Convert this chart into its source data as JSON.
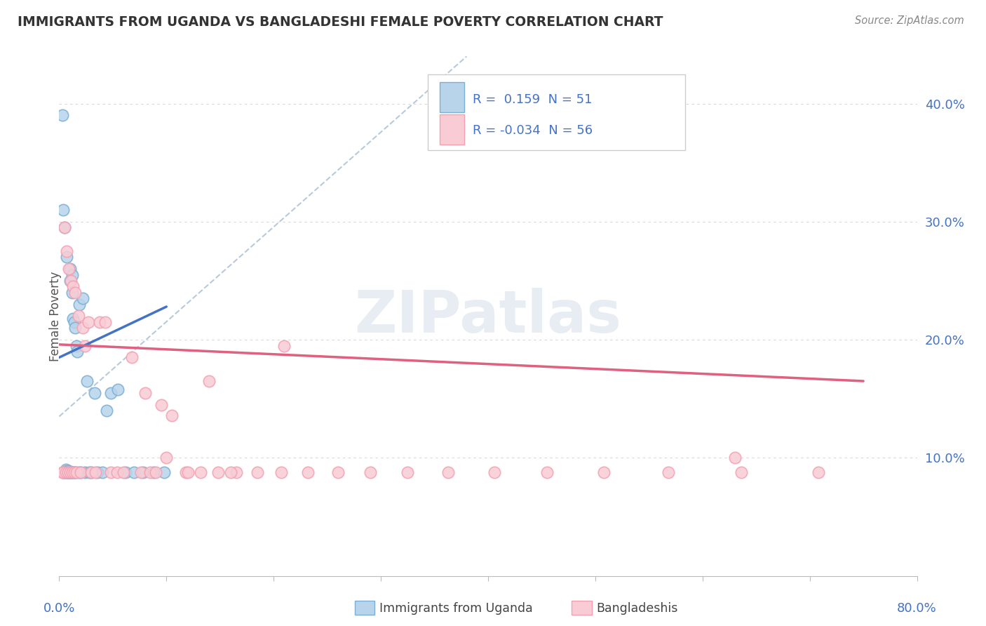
{
  "title": "IMMIGRANTS FROM UGANDA VS BANGLADESHI FEMALE POVERTY CORRELATION CHART",
  "source": "Source: ZipAtlas.com",
  "ylabel": "Female Poverty",
  "watermark": "ZIPatlas",
  "xlim": [
    0.0,
    0.8
  ],
  "ylim": [
    0.0,
    0.44
  ],
  "yticks": [
    0.1,
    0.2,
    0.3,
    0.4
  ],
  "ytick_labels": [
    "10.0%",
    "20.0%",
    "30.0%",
    "40.0%"
  ],
  "blue_edge": "#7bafd4",
  "blue_face": "#b8d4ea",
  "pink_edge": "#f4a0b0",
  "pink_face": "#f9ccd5",
  "trend_blue": "#4472c4",
  "trend_pink": "#e06080",
  "trend_gray": "#b0c4d8",
  "bg_color": "#ffffff",
  "grid_color": "#d8d8d8",
  "title_color": "#333333",
  "axis_color": "#4472c4",
  "legend_border": "#cccccc",
  "uganda_x": [
    0.003,
    0.004,
    0.004,
    0.005,
    0.005,
    0.006,
    0.006,
    0.007,
    0.007,
    0.007,
    0.008,
    0.008,
    0.008,
    0.009,
    0.009,
    0.009,
    0.01,
    0.01,
    0.01,
    0.011,
    0.011,
    0.011,
    0.012,
    0.012,
    0.013,
    0.013,
    0.014,
    0.014,
    0.015,
    0.015,
    0.016,
    0.017,
    0.018,
    0.019,
    0.02,
    0.022,
    0.024,
    0.026,
    0.028,
    0.03,
    0.033,
    0.036,
    0.04,
    0.044,
    0.048,
    0.055,
    0.062,
    0.07,
    0.078,
    0.088,
    0.098
  ],
  "uganda_y": [
    0.39,
    0.31,
    0.088,
    0.295,
    0.088,
    0.088,
    0.09,
    0.27,
    0.088,
    0.089,
    0.088,
    0.088,
    0.088,
    0.088,
    0.088,
    0.089,
    0.26,
    0.25,
    0.088,
    0.088,
    0.088,
    0.088,
    0.255,
    0.24,
    0.088,
    0.218,
    0.215,
    0.088,
    0.21,
    0.088,
    0.195,
    0.19,
    0.088,
    0.23,
    0.088,
    0.235,
    0.088,
    0.165,
    0.088,
    0.088,
    0.155,
    0.088,
    0.088,
    0.14,
    0.155,
    0.158,
    0.088,
    0.088,
    0.088,
    0.088,
    0.088
  ],
  "bang_x": [
    0.003,
    0.004,
    0.005,
    0.006,
    0.007,
    0.008,
    0.009,
    0.01,
    0.011,
    0.012,
    0.013,
    0.014,
    0.015,
    0.016,
    0.018,
    0.02,
    0.022,
    0.024,
    0.027,
    0.03,
    0.034,
    0.038,
    0.043,
    0.048,
    0.054,
    0.06,
    0.068,
    0.076,
    0.085,
    0.095,
    0.105,
    0.118,
    0.132,
    0.148,
    0.165,
    0.185,
    0.207,
    0.232,
    0.26,
    0.29,
    0.325,
    0.363,
    0.406,
    0.455,
    0.508,
    0.568,
    0.636,
    0.708,
    0.08,
    0.09,
    0.1,
    0.12,
    0.14,
    0.16,
    0.21,
    0.63
  ],
  "bang_y": [
    0.088,
    0.088,
    0.295,
    0.088,
    0.275,
    0.088,
    0.26,
    0.088,
    0.25,
    0.088,
    0.245,
    0.088,
    0.24,
    0.088,
    0.22,
    0.088,
    0.21,
    0.195,
    0.215,
    0.088,
    0.088,
    0.215,
    0.215,
    0.088,
    0.088,
    0.088,
    0.185,
    0.088,
    0.088,
    0.145,
    0.136,
    0.088,
    0.088,
    0.088,
    0.088,
    0.088,
    0.088,
    0.088,
    0.088,
    0.088,
    0.088,
    0.088,
    0.088,
    0.088,
    0.088,
    0.088,
    0.088,
    0.088,
    0.155,
    0.088,
    0.1,
    0.088,
    0.165,
    0.088,
    0.195,
    0.1
  ],
  "gray_line_x0": 0.0,
  "gray_line_y0": 0.135,
  "gray_line_x1": 0.38,
  "gray_line_y1": 0.44,
  "blue_trend_x0": 0.0,
  "blue_trend_y0": 0.185,
  "blue_trend_x1": 0.1,
  "blue_trend_y1": 0.228,
  "pink_trend_x0": 0.0,
  "pink_trend_y0": 0.196,
  "pink_trend_x1": 0.75,
  "pink_trend_y1": 0.165
}
